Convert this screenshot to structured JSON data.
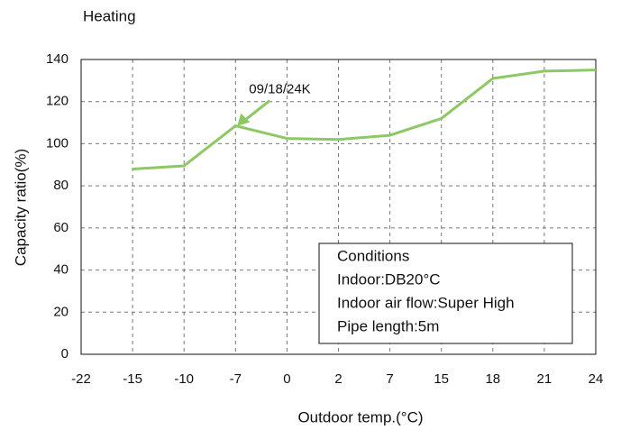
{
  "chart_data": {
    "type": "line",
    "title": "Heating",
    "x_label": "Outdoor temp.(°C)",
    "y_label": "Capacity ratio(%)",
    "categories": [
      "-22",
      "-15",
      "-10",
      "-7",
      "0",
      "2",
      "7",
      "15",
      "18",
      "21",
      "24"
    ],
    "series": [
      {
        "name": "09/18/24K",
        "color": "#8cc864",
        "values": [
          null,
          88,
          89.5,
          108.5,
          102.5,
          102,
          104,
          112,
          131,
          134.5,
          135
        ]
      }
    ],
    "annotation": {
      "text": "09/18/24K",
      "category_index": 3
    },
    "ylim": [
      0,
      140
    ],
    "yticks": [
      0,
      20,
      40,
      60,
      80,
      100,
      120,
      140
    ],
    "grid": true,
    "conditions": [
      "Conditions",
      "Indoor:DB20°C",
      "Indoor air flow:Super High",
      "Pipe length:5m"
    ]
  }
}
